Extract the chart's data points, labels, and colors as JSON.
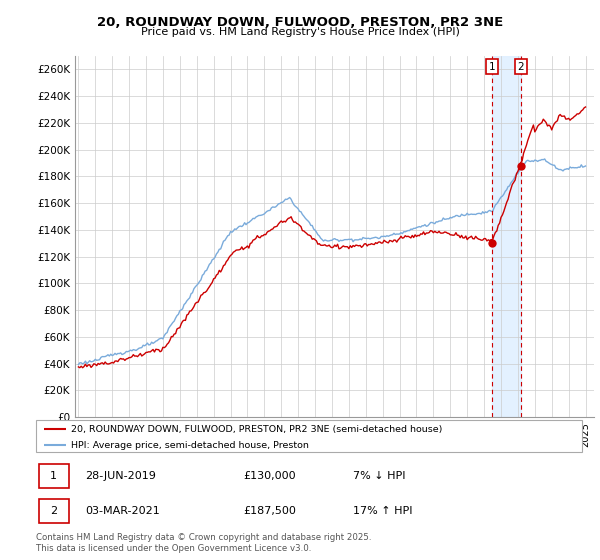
{
  "title": "20, ROUNDWAY DOWN, FULWOOD, PRESTON, PR2 3NE",
  "subtitle": "Price paid vs. HM Land Registry's House Price Index (HPI)",
  "ylabel_ticks": [
    "£0",
    "£20K",
    "£40K",
    "£60K",
    "£80K",
    "£100K",
    "£120K",
    "£140K",
    "£160K",
    "£180K",
    "£200K",
    "£220K",
    "£240K",
    "£260K"
  ],
  "ytick_vals": [
    0,
    20000,
    40000,
    60000,
    80000,
    100000,
    120000,
    140000,
    160000,
    180000,
    200000,
    220000,
    240000,
    260000
  ],
  "ylim": [
    0,
    270000
  ],
  "xlim_start": 1994.8,
  "xlim_end": 2025.5,
  "legend_line1": "20, ROUNDWAY DOWN, FULWOOD, PRESTON, PR2 3NE (semi-detached house)",
  "legend_line2": "HPI: Average price, semi-detached house, Preston",
  "transaction1_date": "28-JUN-2019",
  "transaction1_price": "£130,000",
  "transaction1_hpi": "7% ↓ HPI",
  "transaction2_date": "03-MAR-2021",
  "transaction2_price": "£187,500",
  "transaction2_hpi": "17% ↑ HPI",
  "footnote": "Contains HM Land Registry data © Crown copyright and database right 2025.\nThis data is licensed under the Open Government Licence v3.0.",
  "line_color_red": "#cc0000",
  "line_color_blue": "#7aabdb",
  "shade_color": "#ddeeff",
  "marker1_x": 2019.49,
  "marker1_y": 130000,
  "marker2_x": 2021.17,
  "marker2_y": 187500,
  "vline1_x": 2019.49,
  "vline2_x": 2021.17
}
